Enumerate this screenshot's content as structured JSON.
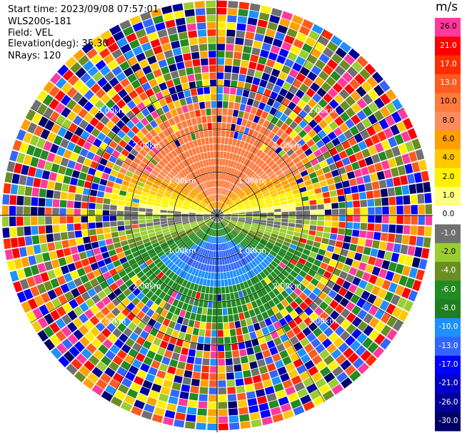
{
  "header": {
    "start_time": "Start time: 2023/09/08 07:57:01",
    "instrument": "WLS200s-181",
    "field": "Field: VEL",
    "elevation": "Elevation(deg): 35.30",
    "nrays": "NRays: 120"
  },
  "chart_data": {
    "type": "heatmap",
    "projection": "polar-ppi",
    "title": "",
    "field": "VEL",
    "n_rays": 120,
    "range_rings_km": [
      1.0,
      2.0,
      3.0
    ],
    "ring_labels": [
      "1.00km",
      "2.00km",
      "3.00km"
    ],
    "colorbar": {
      "unit": "m/s",
      "ticks": [
        "26.0",
        "21.0",
        "17.0",
        "13.0",
        "10.0",
        "8.0",
        "6.0",
        "4.0",
        "2.0",
        "1.0",
        "0.0",
        "-1.0",
        "-2.0",
        "-4.0",
        "-6.0",
        "-8.0",
        "-10.0",
        "-13.0",
        "-17.0",
        "-21.0",
        "-26.0",
        "-30.0"
      ],
      "colors": [
        "#ff3a9c",
        "#ff0000",
        "#ff2d00",
        "#ff5a20",
        "#ff7a3c",
        "#ff8c5a",
        "#ff9f00",
        "#ffc800",
        "#fff200",
        "#ffff80",
        "#ffffff",
        "#707070",
        "#9acd32",
        "#6b8e23",
        "#228b22",
        "#1e7f1e",
        "#1e90ff",
        "#3366ff",
        "#0000ff",
        "#0000cc",
        "#000099",
        "#000066"
      ]
    },
    "pattern": {
      "positive_sector": "north",
      "negative_sector": "south",
      "noisy_beyond_km": 2.4
    }
  }
}
